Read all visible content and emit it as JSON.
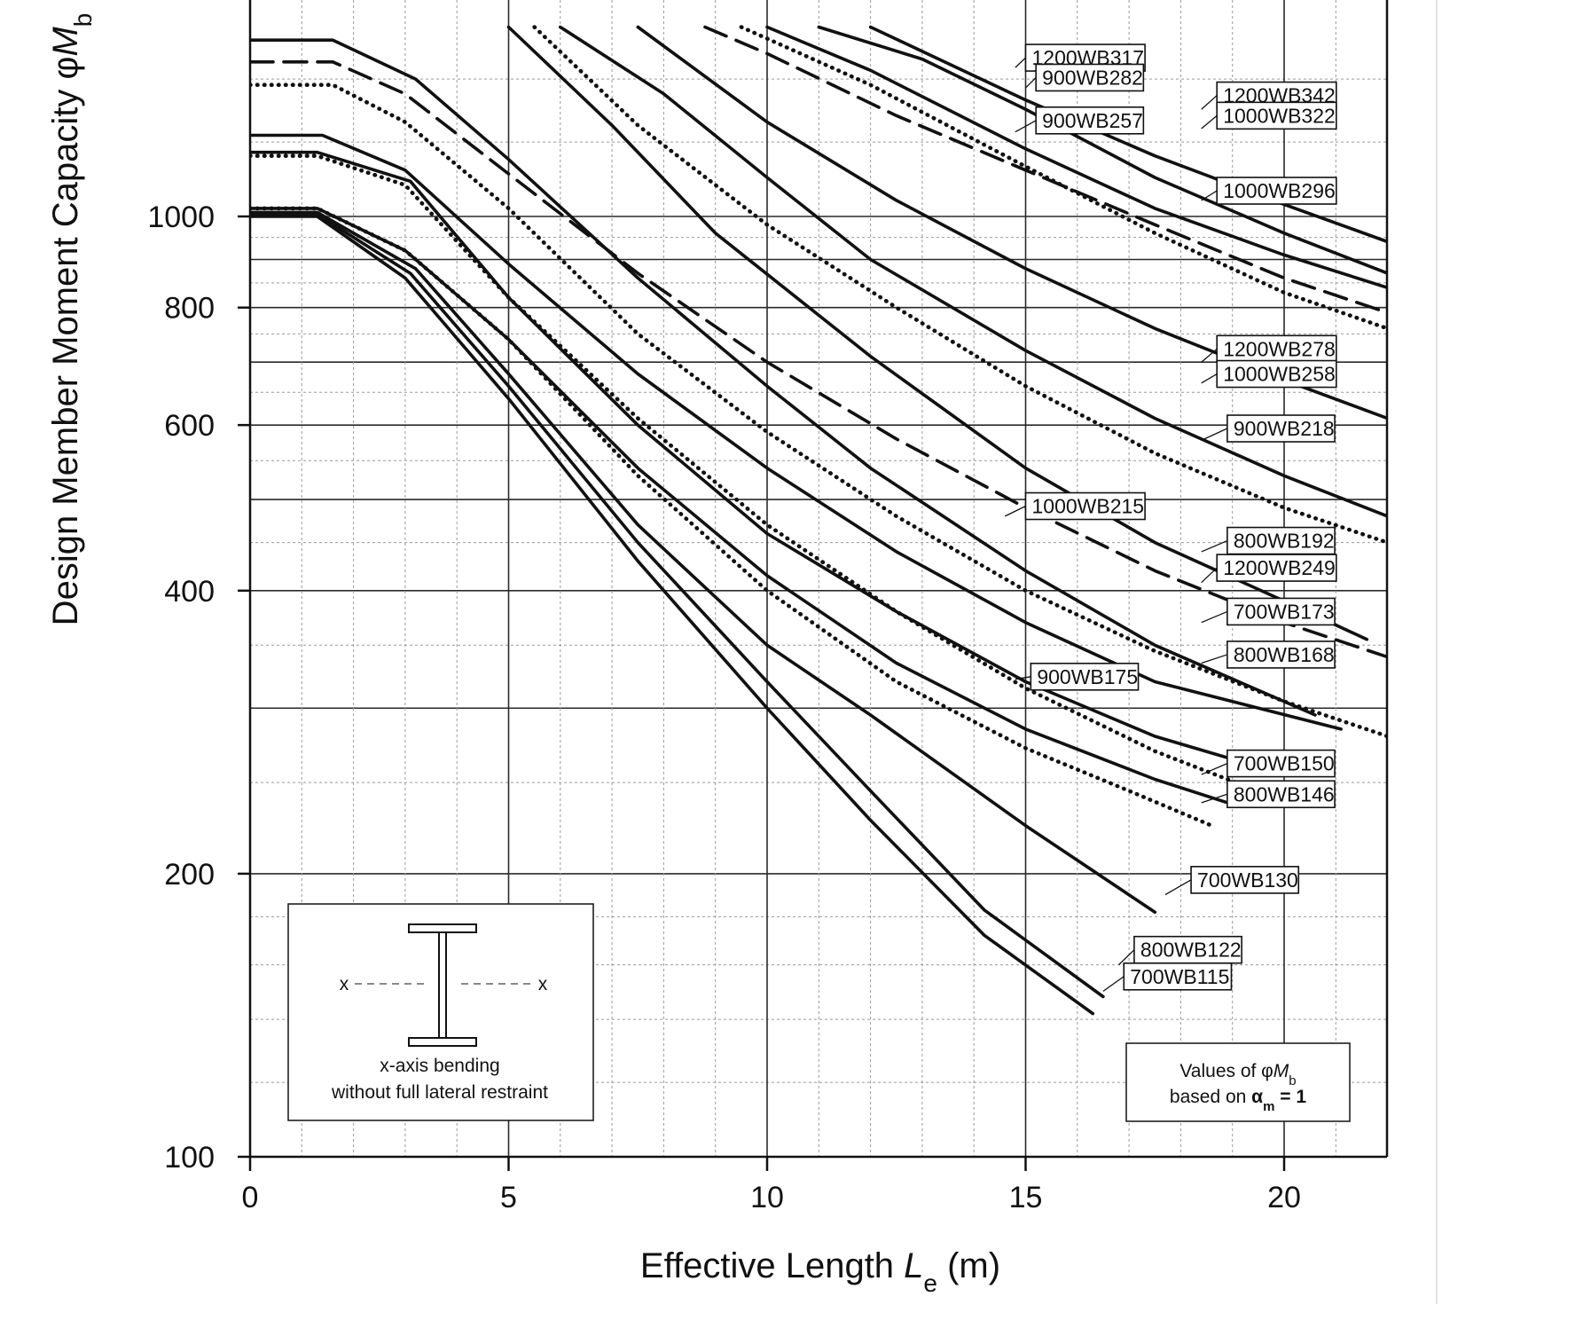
{
  "chart_data": {
    "type": "line",
    "xlabel_parts": {
      "main": "Effective Length ",
      "symbol": "L",
      "sub": "e",
      "tail": " (m)"
    },
    "ylabel_parts": {
      "main": "Design Member Moment Capacity φ",
      "symbol": "M",
      "sub": "b"
    },
    "x_axis": {
      "min": 0,
      "max": 22,
      "scale": "linear",
      "ticks": [
        {
          "v": 0,
          "label": "0"
        },
        {
          "v": 5,
          "label": "5"
        },
        {
          "v": 10,
          "label": "10"
        },
        {
          "v": 15,
          "label": "15"
        },
        {
          "v": 20,
          "label": "20"
        }
      ],
      "minor_ticks": [
        1,
        2,
        3,
        4,
        6,
        7,
        8,
        9,
        11,
        12,
        13,
        14,
        16,
        17,
        18,
        19,
        21
      ]
    },
    "y_axis": {
      "min": 100,
      "max": 1560,
      "scale": "log",
      "ticks": [
        {
          "v": 100,
          "label": "100"
        },
        {
          "v": 200,
          "label": "200"
        },
        {
          "v": 400,
          "label": "400"
        },
        {
          "v": 600,
          "label": "600"
        },
        {
          "v": 800,
          "label": "800"
        },
        {
          "v": 1000,
          "label": "1000"
        }
      ],
      "major_grid": [
        100,
        200,
        300,
        400,
        500,
        600,
        700,
        800,
        900,
        1000
      ],
      "minor_grid": [
        120,
        140,
        160,
        180,
        250,
        350,
        450,
        550,
        650,
        750,
        850,
        950,
        1200,
        1400
      ]
    },
    "grid": true,
    "series": [
      {
        "name": "1200WB342",
        "style": "solid",
        "points": [
          [
            12,
            1590
          ],
          [
            15,
            1330
          ],
          [
            17.5,
            1160
          ],
          [
            20,
            1030
          ],
          [
            22,
            940
          ]
        ]
      },
      {
        "name": "1200WB317",
        "style": "solid",
        "points": [
          [
            11,
            1590
          ],
          [
            13,
            1470
          ],
          [
            15,
            1300
          ],
          [
            17.5,
            1100
          ],
          [
            20,
            960
          ],
          [
            22,
            870
          ]
        ]
      },
      {
        "name": "1000WB322",
        "style": "solid",
        "points": [
          [
            10,
            1590
          ],
          [
            12,
            1430
          ],
          [
            15,
            1180
          ],
          [
            17.5,
            1020
          ],
          [
            20,
            910
          ],
          [
            22,
            840
          ]
        ]
      },
      {
        "name": "1200WB278",
        "style": "dotted",
        "points": [
          [
            9.5,
            1590
          ],
          [
            12,
            1380
          ],
          [
            15,
            1130
          ],
          [
            17.5,
            960
          ],
          [
            20,
            830
          ],
          [
            22,
            760
          ]
        ]
      },
      {
        "name": "900WB282",
        "style": "dashed",
        "points": [
          [
            8.8,
            1590
          ],
          [
            10,
            1490
          ],
          [
            12.5,
            1280
          ],
          [
            15,
            1120
          ],
          [
            17.5,
            980
          ],
          [
            20,
            860
          ],
          [
            22,
            790
          ]
        ]
      },
      {
        "name": "1000WB296",
        "style": "solid",
        "points": [
          [
            7.5,
            1590
          ],
          [
            10,
            1260
          ],
          [
            12.5,
            1040
          ],
          [
            15,
            880
          ],
          [
            17.5,
            760
          ],
          [
            20,
            670
          ],
          [
            22,
            610
          ]
        ]
      },
      {
        "name": "900WB257",
        "style": "solid",
        "points": [
          [
            6,
            1590
          ],
          [
            8,
            1350
          ],
          [
            10,
            1100
          ],
          [
            12,
            900
          ],
          [
            15,
            720
          ],
          [
            17.5,
            610
          ],
          [
            20,
            530
          ],
          [
            22,
            480
          ]
        ]
      },
      {
        "name": "1000WB258",
        "style": "dotted",
        "points": [
          [
            5.5,
            1590
          ],
          [
            7.5,
            1250
          ],
          [
            10,
            980
          ],
          [
            12.5,
            800
          ],
          [
            15,
            660
          ],
          [
            17.5,
            560
          ],
          [
            20,
            490
          ],
          [
            22,
            450
          ]
        ]
      },
      {
        "name": "1000WB215",
        "style": "solid",
        "points": [
          [
            5,
            1590
          ],
          [
            7,
            1250
          ],
          [
            9,
            960
          ],
          [
            12,
            710
          ],
          [
            15,
            540
          ],
          [
            17.5,
            450
          ],
          [
            20,
            390
          ],
          [
            21.6,
            355
          ]
        ]
      },
      {
        "name": "1200WB249",
        "style": "dashed",
        "points": [
          [
            0,
            1460
          ],
          [
            1.6,
            1460
          ],
          [
            3,
            1350
          ],
          [
            5,
            1110
          ],
          [
            7.5,
            870
          ],
          [
            10,
            700
          ],
          [
            12.5,
            580
          ],
          [
            15,
            490
          ],
          [
            17.5,
            420
          ],
          [
            20,
            370
          ],
          [
            22,
            340
          ]
        ]
      },
      {
        "name": "900WB218",
        "style": "dotted",
        "points": [
          [
            0,
            1380
          ],
          [
            1.6,
            1380
          ],
          [
            3,
            1260
          ],
          [
            5,
            1020
          ],
          [
            7.5,
            750
          ],
          [
            10,
            590
          ],
          [
            12.5,
            480
          ],
          [
            15,
            400
          ],
          [
            17.5,
            345
          ],
          [
            20,
            305
          ],
          [
            22,
            280
          ]
        ]
      },
      {
        "name": "800WB192",
        "style": "solid",
        "points": [
          [
            0,
            1540
          ],
          [
            1.6,
            1540
          ],
          [
            3.2,
            1400
          ],
          [
            5,
            1150
          ],
          [
            7.5,
            860
          ],
          [
            10,
            660
          ],
          [
            12,
            540
          ],
          [
            15,
            420
          ],
          [
            17.5,
            350
          ],
          [
            20.6,
            295
          ]
        ]
      },
      {
        "name": "900WB175",
        "style": "solid",
        "points": [
          [
            0,
            1220
          ],
          [
            1.4,
            1220
          ],
          [
            3,
            1120
          ],
          [
            5,
            890
          ],
          [
            7.5,
            680
          ],
          [
            10,
            540
          ],
          [
            12.5,
            440
          ],
          [
            15,
            370
          ],
          [
            17.5,
            320
          ],
          [
            21.1,
            285
          ]
        ]
      },
      {
        "name": "700WB173",
        "style": "solid",
        "points": [
          [
            0,
            1170
          ],
          [
            1.3,
            1170
          ],
          [
            3.1,
            1090
          ],
          [
            5,
            820
          ],
          [
            7.5,
            600
          ],
          [
            10,
            460
          ],
          [
            12.5,
            380
          ],
          [
            15,
            320
          ],
          [
            17.5,
            280
          ],
          [
            20,
            255
          ]
        ]
      },
      {
        "name": "800WB168",
        "style": "dotted",
        "points": [
          [
            0,
            1160
          ],
          [
            1.3,
            1160
          ],
          [
            3,
            1080
          ],
          [
            5,
            820
          ],
          [
            7.5,
            610
          ],
          [
            10,
            470
          ],
          [
            12.5,
            380
          ],
          [
            15,
            315
          ],
          [
            17.5,
            270
          ],
          [
            19.9,
            240
          ]
        ]
      },
      {
        "name": "700WB150",
        "style": "solid",
        "points": [
          [
            0,
            1020
          ],
          [
            1.3,
            1020
          ],
          [
            3,
            920
          ],
          [
            5,
            740
          ],
          [
            7.5,
            540
          ],
          [
            10,
            415
          ],
          [
            12.5,
            335
          ],
          [
            15,
            285
          ],
          [
            17.5,
            252
          ],
          [
            18.9,
            238
          ]
        ]
      },
      {
        "name": "800WB146",
        "style": "dotted",
        "points": [
          [
            0,
            1020
          ],
          [
            1.3,
            1020
          ],
          [
            3,
            920
          ],
          [
            5,
            740
          ],
          [
            7.5,
            530
          ],
          [
            10,
            400
          ],
          [
            12.5,
            320
          ],
          [
            15,
            272
          ],
          [
            17,
            245
          ],
          [
            18.6,
            225
          ]
        ]
      },
      {
        "name": "700WB130",
        "style": "solid",
        "points": [
          [
            0,
            1010
          ],
          [
            1.3,
            1010
          ],
          [
            3.2,
            880
          ],
          [
            5,
            680
          ],
          [
            7.5,
            470
          ],
          [
            10,
            350
          ],
          [
            12,
            295
          ],
          [
            15,
            225
          ],
          [
            17.5,
            182
          ]
        ]
      },
      {
        "name": "800WB122",
        "style": "solid",
        "points": [
          [
            0,
            1005
          ],
          [
            1.3,
            1005
          ],
          [
            3.1,
            870
          ],
          [
            5,
            660
          ],
          [
            7.5,
            450
          ],
          [
            10,
            320
          ],
          [
            12,
            245
          ],
          [
            14.2,
            183
          ],
          [
            16.5,
            148
          ]
        ]
      },
      {
        "name": "700WB115",
        "style": "solid",
        "points": [
          [
            0,
            1000
          ],
          [
            1.3,
            1000
          ],
          [
            3,
            860
          ],
          [
            5,
            640
          ],
          [
            7.5,
            430
          ],
          [
            10,
            300
          ],
          [
            12,
            228
          ],
          [
            14.2,
            172
          ],
          [
            16.3,
            142
          ]
        ]
      }
    ],
    "curve_labels": [
      {
        "series": "1200WB317",
        "text": "1200WB317",
        "at": [
          16.2,
          1475
        ],
        "box": [
          15,
          1475
        ],
        "anchor_pt": [
          14.8,
          1440
        ]
      },
      {
        "series": "900WB282",
        "text": "900WB282",
        "at": [
          16.1,
          1405
        ],
        "box": [
          15.2,
          1405
        ],
        "anchor_pt": [
          15,
          1370
        ]
      },
      {
        "series": "1200WB342",
        "text": "1200WB342",
        "at": [
          19.9,
          1345
        ],
        "box": [
          18.7,
          1345
        ],
        "anchor_pt": [
          18.4,
          1300
        ]
      },
      {
        "series": "1000WB322",
        "text": "1000WB322",
        "at": [
          19.9,
          1280
        ],
        "box": [
          18.7,
          1280
        ],
        "anchor_pt": [
          18.4,
          1240
        ]
      },
      {
        "series": "900WB257",
        "text": "900WB257",
        "at": [
          16.1,
          1265
        ],
        "box": [
          15.2,
          1265
        ],
        "anchor_pt": [
          14.8,
          1230
        ]
      },
      {
        "series": "1000WB296",
        "text": "1000WB296",
        "at": [
          19.9,
          1065
        ],
        "box": [
          18.7,
          1065
        ],
        "anchor_pt": [
          18.4,
          1040
        ]
      },
      {
        "series": "1200WB278",
        "text": "1200WB278",
        "at": [
          19.9,
          723
        ],
        "box": [
          18.7,
          723
        ],
        "anchor_pt": [
          18.4,
          700
        ]
      },
      {
        "series": "1000WB258",
        "text": "1000WB258",
        "at": [
          19.9,
          680
        ],
        "box": [
          18.7,
          680
        ],
        "anchor_pt": [
          18.4,
          665
        ]
      },
      {
        "series": "900WB218",
        "text": "900WB218",
        "at": [
          19.9,
          595
        ],
        "box": [
          18.9,
          595
        ],
        "anchor_pt": [
          18.4,
          578
        ]
      },
      {
        "series": "1000WB215",
        "text": "1000WB215",
        "at": [
          16.2,
          492
        ],
        "box": [
          15,
          492
        ],
        "anchor_pt": [
          14.6,
          480
        ]
      },
      {
        "series": "800WB192",
        "text": "800WB192",
        "at": [
          19.9,
          452
        ],
        "box": [
          18.9,
          452
        ],
        "anchor_pt": [
          18.4,
          440
        ]
      },
      {
        "series": "1200WB249",
        "text": "1200WB249",
        "at": [
          19.9,
          423
        ],
        "box": [
          18.7,
          423
        ],
        "anchor_pt": [
          18.4,
          408
        ]
      },
      {
        "series": "700WB173",
        "text": "700WB173",
        "at": [
          19.9,
          380
        ],
        "box": [
          18.9,
          380
        ],
        "anchor_pt": [
          18.4,
          370
        ]
      },
      {
        "series": "800WB168",
        "text": "800WB168",
        "at": [
          19.9,
          342
        ],
        "box": [
          18.9,
          342
        ],
        "anchor_pt": [
          18.4,
          335
        ]
      },
      {
        "series": "900WB175",
        "text": "900WB175",
        "at": [
          16.1,
          324
        ],
        "box": [
          15.1,
          324
        ],
        "anchor_pt": [
          14.8,
          322
        ]
      },
      {
        "series": "700WB150",
        "text": "700WB150",
        "at": [
          19.9,
          262
        ],
        "box": [
          18.9,
          262
        ],
        "anchor_pt": [
          18.4,
          255
        ]
      },
      {
        "series": "800WB146",
        "text": "800WB146",
        "at": [
          19.9,
          243
        ],
        "box": [
          18.9,
          243
        ],
        "anchor_pt": [
          18.4,
          238
        ]
      },
      {
        "series": "700WB130",
        "text": "700WB130",
        "at": [
          19.4,
          197
        ],
        "box": [
          18.2,
          197
        ],
        "anchor_pt": [
          17.7,
          190
        ]
      },
      {
        "series": "800WB122",
        "text": "800WB122",
        "at": [
          18.3,
          166
        ],
        "box": [
          17.1,
          166
        ],
        "anchor_pt": [
          16.8,
          160
        ]
      },
      {
        "series": "700WB115",
        "text": "700WB115",
        "at": [
          18.1,
          155.5
        ],
        "box": [
          16.9,
          155.5
        ],
        "anchor_pt": [
          16.5,
          150
        ]
      }
    ],
    "inset_note": {
      "bending_line1": "x-axis bending",
      "bending_line2": "without full lateral restraint",
      "axis_left": "x",
      "axis_right": "x"
    },
    "values_note": {
      "line1_main": "Values of φ",
      "line1_symbol": "M",
      "line1_sub": "b",
      "line2_main": "based on ",
      "line2_symbol": "α",
      "line2_sub": "m",
      "line2_tail": " = 1"
    }
  }
}
